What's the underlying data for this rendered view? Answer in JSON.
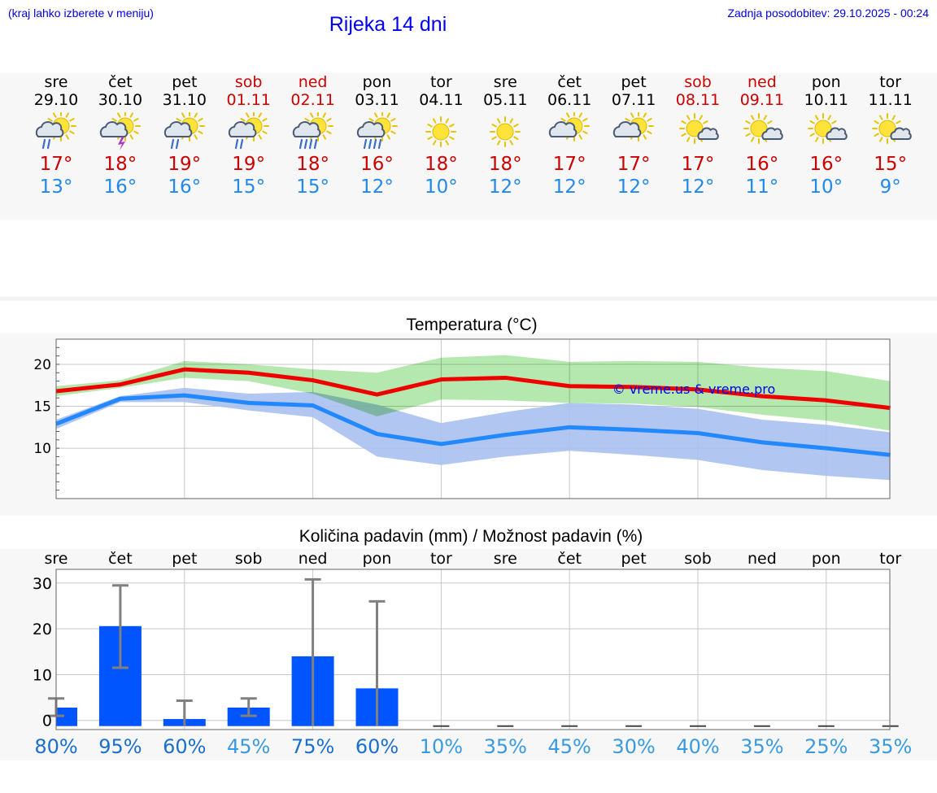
{
  "header": {
    "hint": "(kraj lahko izberete v meniju)",
    "title": "Rijeka 14 dni",
    "updated": "Zadnja posodobitev: 29.10.2025 - 00:24"
  },
  "days": [
    {
      "name": "sre",
      "date": "29.10",
      "icon": "sun-cloud-rain-icon",
      "max": "17°",
      "min": "13°",
      "weekend": false
    },
    {
      "name": "čet",
      "date": "30.10",
      "icon": "sun-cloud-thunder-icon",
      "max": "18°",
      "min": "16°",
      "weekend": false
    },
    {
      "name": "pet",
      "date": "31.10",
      "icon": "sun-cloud-rain-icon",
      "max": "19°",
      "min": "16°",
      "weekend": false
    },
    {
      "name": "sob",
      "date": "01.11",
      "icon": "sun-cloud-rain-icon",
      "max": "19°",
      "min": "15°",
      "weekend": true
    },
    {
      "name": "ned",
      "date": "02.11",
      "icon": "sun-cloud-heavy-rain-icon",
      "max": "18°",
      "min": "15°",
      "weekend": true
    },
    {
      "name": "pon",
      "date": "03.11",
      "icon": "sun-cloud-heavy-rain-icon",
      "max": "16°",
      "min": "12°",
      "weekend": false
    },
    {
      "name": "tor",
      "date": "04.11",
      "icon": "sun-icon",
      "max": "18°",
      "min": "10°",
      "weekend": false
    },
    {
      "name": "sre",
      "date": "05.11",
      "icon": "sun-icon",
      "max": "18°",
      "min": "12°",
      "weekend": false
    },
    {
      "name": "čet",
      "date": "06.11",
      "icon": "sun-cloud-icon",
      "max": "17°",
      "min": "12°",
      "weekend": false
    },
    {
      "name": "pet",
      "date": "07.11",
      "icon": "sun-cloud-icon",
      "max": "17°",
      "min": "12°",
      "weekend": false
    },
    {
      "name": "sob",
      "date": "08.11",
      "icon": "sun-small-cloud-icon",
      "max": "17°",
      "min": "12°",
      "weekend": true
    },
    {
      "name": "ned",
      "date": "09.11",
      "icon": "sun-small-cloud-icon",
      "max": "16°",
      "min": "11°",
      "weekend": true
    },
    {
      "name": "pon",
      "date": "10.11",
      "icon": "sun-small-cloud-icon",
      "max": "16°",
      "min": "10°",
      "weekend": false
    },
    {
      "name": "tor",
      "date": "11.11",
      "icon": "sun-small-cloud-icon",
      "max": "15°",
      "min": "9°",
      "weekend": false
    }
  ],
  "colors": {
    "max_line": "#ee0000",
    "min_line": "#2288ff",
    "max_band": "#a8e4a0",
    "min_band": "#a8c0f0",
    "bar": "#0055ff",
    "error": "#808080",
    "pct_high": "#1a6fcc",
    "pct_low": "#3a9ae0"
  },
  "chart_data": [
    {
      "type": "line",
      "title": "Temperatura (°C)",
      "watermark": "© vreme.us & vreme.pro",
      "ylim": [
        4,
        23
      ],
      "yticks": [
        10,
        15,
        20
      ],
      "series": [
        {
          "name": "max",
          "values": [
            16.8,
            17.6,
            19.4,
            19.0,
            18.1,
            16.4,
            18.2,
            18.4,
            17.4,
            17.3,
            17.0,
            16.2,
            15.7,
            14.8
          ],
          "band_low": [
            16.2,
            17.2,
            18.4,
            18.0,
            16.5,
            13.8,
            15.8,
            15.7,
            15.4,
            15.3,
            14.9,
            14.0,
            13.3,
            12.1
          ],
          "band_high": [
            17.4,
            18.1,
            20.4,
            20.0,
            19.4,
            19.0,
            20.8,
            21.1,
            20.3,
            20.4,
            20.3,
            19.6,
            19.2,
            18.0
          ]
        },
        {
          "name": "min",
          "values": [
            12.9,
            15.9,
            16.3,
            15.4,
            15.1,
            11.7,
            10.5,
            11.6,
            12.5,
            12.2,
            11.8,
            10.7,
            10.0,
            9.2
          ],
          "band_low": [
            12.3,
            15.5,
            15.5,
            14.5,
            13.7,
            9.0,
            8.0,
            9.0,
            9.7,
            9.2,
            8.6,
            7.4,
            6.7,
            6.2
          ],
          "band_high": [
            13.4,
            16.2,
            17.2,
            16.5,
            16.7,
            15.2,
            13.0,
            14.3,
            15.4,
            15.2,
            14.7,
            13.4,
            12.8,
            11.9
          ]
        }
      ]
    },
    {
      "type": "bar",
      "title": "Količina padavin (mm) / Možnost padavin (%)",
      "categories": [
        "sre",
        "čet",
        "pet",
        "sob",
        "ned",
        "pon",
        "tor",
        "sre",
        "čet",
        "pet",
        "sob",
        "ned",
        "pon",
        "tor"
      ],
      "ylim": [
        -2,
        33
      ],
      "yticks": [
        0,
        10,
        20,
        30
      ],
      "values": [
        2.8,
        20.6,
        0.3,
        2.8,
        14.0,
        7.0,
        0,
        0,
        0,
        0,
        0,
        0,
        0,
        0
      ],
      "err_low": [
        1.0,
        11.5,
        0,
        1.0,
        0,
        0,
        0,
        0,
        0,
        0,
        0,
        0,
        0,
        0
      ],
      "err_high": [
        4.8,
        29.5,
        4.3,
        4.8,
        30.8,
        26.0,
        0,
        0,
        0,
        0,
        0,
        0,
        0,
        0
      ],
      "probability": [
        "80%",
        "95%",
        "60%",
        "45%",
        "75%",
        "60%",
        "10%",
        "35%",
        "45%",
        "30%",
        "40%",
        "35%",
        "25%",
        "35%"
      ]
    }
  ]
}
